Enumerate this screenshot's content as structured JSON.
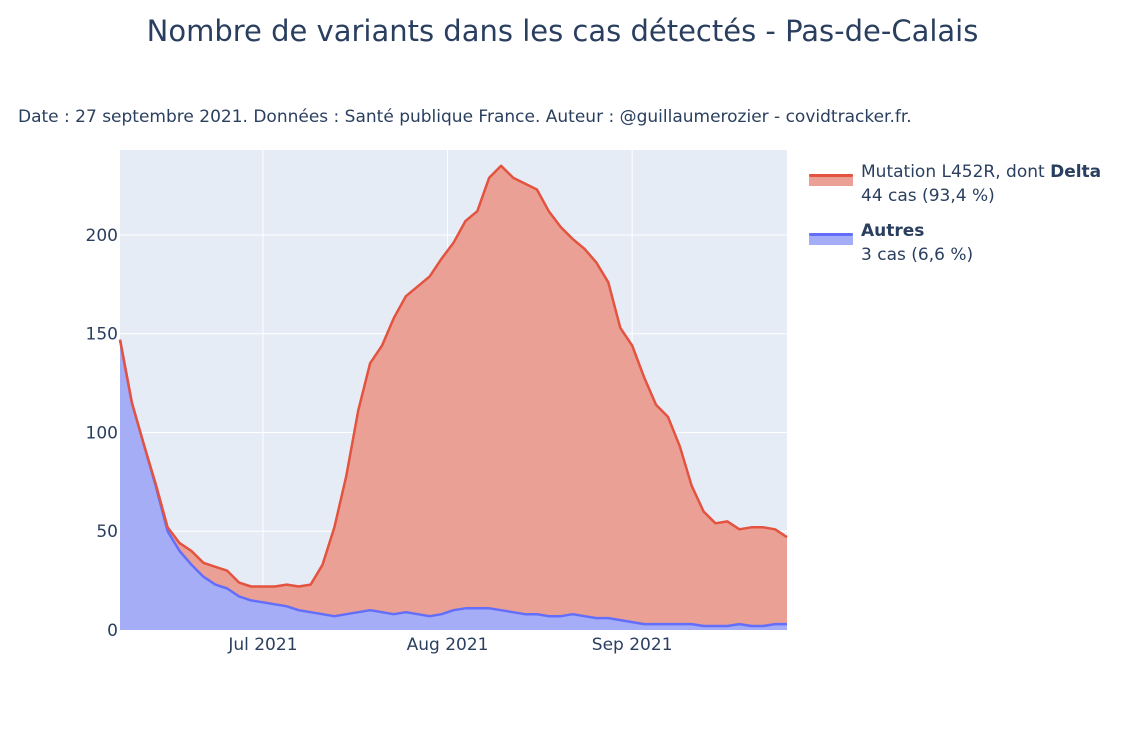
{
  "title": "Nombre de variants dans les cas détectés - Pas-de-Calais",
  "subtitle": "Date : 27 septembre 2021. Données : Santé publique France. Auteur : @guillaumerozier - covidtracker.fr.",
  "legend": [
    {
      "label_prefix": "Mutation L452R, dont ",
      "label_bold": "Delta",
      "detail": "44 cas (93,4 %)"
    },
    {
      "label_prefix": "",
      "label_bold": "Autres",
      "detail": "3 cas (6,6 %)"
    }
  ],
  "colors": {
    "plot_bg": "#e5ecf6",
    "grid": "#ffffff",
    "delta_line": "#e4533f",
    "delta_fill": "#eaa094",
    "autres_line": "#636efa",
    "autres_fill": "#a5adf7"
  },
  "chart_data": {
    "type": "area",
    "stacked": true,
    "title": "Nombre de variants dans les cas détectés - Pas-de-Calais",
    "x_range": [
      "2021-06-07",
      "2021-09-27"
    ],
    "ylim": [
      0,
      243
    ],
    "x_ticks": [
      {
        "date": "2021-07-01",
        "label": "Jul 2021"
      },
      {
        "date": "2021-08-01",
        "label": "Aug 2021"
      },
      {
        "date": "2021-09-01",
        "label": "Sep 2021"
      }
    ],
    "y_ticks": [
      0,
      50,
      100,
      150,
      200
    ],
    "grid": true,
    "legend_position": "top-right",
    "x": [
      "2021-06-07",
      "2021-06-09",
      "2021-06-11",
      "2021-06-13",
      "2021-06-15",
      "2021-06-17",
      "2021-06-19",
      "2021-06-21",
      "2021-06-23",
      "2021-06-25",
      "2021-06-27",
      "2021-06-29",
      "2021-07-01",
      "2021-07-03",
      "2021-07-05",
      "2021-07-07",
      "2021-07-09",
      "2021-07-11",
      "2021-07-13",
      "2021-07-15",
      "2021-07-17",
      "2021-07-19",
      "2021-07-21",
      "2021-07-23",
      "2021-07-25",
      "2021-07-27",
      "2021-07-29",
      "2021-07-31",
      "2021-08-02",
      "2021-08-04",
      "2021-08-06",
      "2021-08-08",
      "2021-08-10",
      "2021-08-12",
      "2021-08-14",
      "2021-08-16",
      "2021-08-18",
      "2021-08-20",
      "2021-08-22",
      "2021-08-24",
      "2021-08-26",
      "2021-08-28",
      "2021-08-30",
      "2021-09-01",
      "2021-09-03",
      "2021-09-05",
      "2021-09-07",
      "2021-09-09",
      "2021-09-11",
      "2021-09-13",
      "2021-09-15",
      "2021-09-17",
      "2021-09-19",
      "2021-09-21",
      "2021-09-23",
      "2021-09-25",
      "2021-09-27"
    ],
    "series": [
      {
        "name": "Autres",
        "values": [
          147,
          115,
          94,
          73,
          50,
          40,
          33,
          27,
          23,
          21,
          17,
          15,
          14,
          13,
          12,
          10,
          9,
          8,
          7,
          8,
          9,
          10,
          9,
          8,
          9,
          8,
          7,
          8,
          10,
          11,
          11,
          11,
          10,
          9,
          8,
          8,
          7,
          7,
          8,
          7,
          6,
          6,
          5,
          4,
          3,
          3,
          3,
          3,
          3,
          2,
          2,
          2,
          3,
          2,
          2,
          3,
          3
        ]
      },
      {
        "name": "Mutation L452R, dont Delta",
        "values": [
          0,
          0,
          0,
          1,
          2,
          4,
          7,
          7,
          9,
          9,
          7,
          7,
          8,
          9,
          11,
          12,
          14,
          25,
          45,
          70,
          102,
          125,
          135,
          150,
          160,
          166,
          172,
          180,
          186,
          196,
          201,
          218,
          225,
          220,
          218,
          215,
          205,
          197,
          190,
          186,
          180,
          170,
          148,
          140,
          125,
          111,
          105,
          90,
          70,
          58,
          52,
          53,
          48,
          50,
          50,
          48,
          44
        ]
      }
    ],
    "final_summary": {
      "delta": "44 cas (93,4 %)",
      "autres": "3 cas (6,6 %)"
    }
  }
}
